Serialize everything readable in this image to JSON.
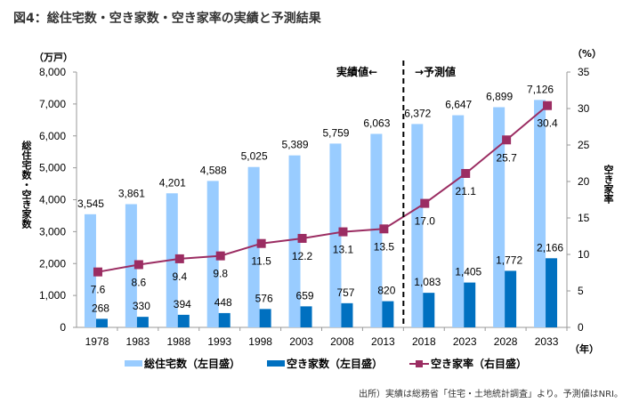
{
  "chart_data": {
    "type": "bar",
    "title": "図4：総住宅数・空き家数・空き家率の実績と予測結果",
    "categories": [
      "1978",
      "1983",
      "1988",
      "1993",
      "1998",
      "2003",
      "2008",
      "2013",
      "2018",
      "2023",
      "2028",
      "2033"
    ],
    "series": [
      {
        "name": "総住宅数（左目盛）",
        "type": "bar",
        "axis": "left",
        "color": "#99ccff",
        "values": [
          3545,
          3861,
          4201,
          4588,
          5025,
          5389,
          5759,
          6063,
          6372,
          6647,
          6899,
          7126
        ],
        "labels": [
          "3,545",
          "3,861",
          "4,201",
          "4,588",
          "5,025",
          "5,389",
          "5,759",
          "6,063",
          "6,372",
          "6,647",
          "6,899",
          "7,126"
        ]
      },
      {
        "name": "空き家数（左目盛）",
        "type": "bar",
        "axis": "left",
        "color": "#0070c0",
        "values": [
          268,
          330,
          394,
          448,
          576,
          659,
          757,
          820,
          1083,
          1405,
          1772,
          2166
        ],
        "labels": [
          "268",
          "330",
          "394",
          "448",
          "576",
          "659",
          "757",
          "820",
          "1,083",
          "1,405",
          "1,772",
          "2,166"
        ]
      },
      {
        "name": "空き家率（右目盛）",
        "type": "line",
        "axis": "right",
        "color": "#9b2d62",
        "values": [
          7.6,
          8.6,
          9.4,
          9.8,
          11.5,
          12.2,
          13.1,
          13.5,
          17.0,
          21.1,
          25.7,
          30.4
        ],
        "labels": [
          "7.6",
          "8.6",
          "9.4",
          "9.8",
          "11.5",
          "12.2",
          "13.1",
          "13.5",
          "17.0",
          "21.1",
          "25.7",
          "30.4"
        ]
      }
    ],
    "y_left": {
      "unit": "（万戸）",
      "label": "総住宅数・空き家数",
      "ylim": [
        0,
        8000
      ],
      "ticks": [
        "0",
        "1,000",
        "2,000",
        "3,000",
        "4,000",
        "5,000",
        "6,000",
        "7,000",
        "8,000"
      ]
    },
    "y_right": {
      "unit": "（%）",
      "label": "空き家率",
      "ylim": [
        0,
        35
      ],
      "ticks": [
        "0",
        "5",
        "10",
        "15",
        "20",
        "25",
        "30",
        "35"
      ]
    },
    "x_unit": "（年）",
    "annotations": {
      "actual": "実績値←",
      "forecast": "→予測値"
    },
    "grid": false,
    "legend": "bottom"
  },
  "source": "出所）実績は総務省「住宅・土地統計調査」より。予測値はNRI。"
}
